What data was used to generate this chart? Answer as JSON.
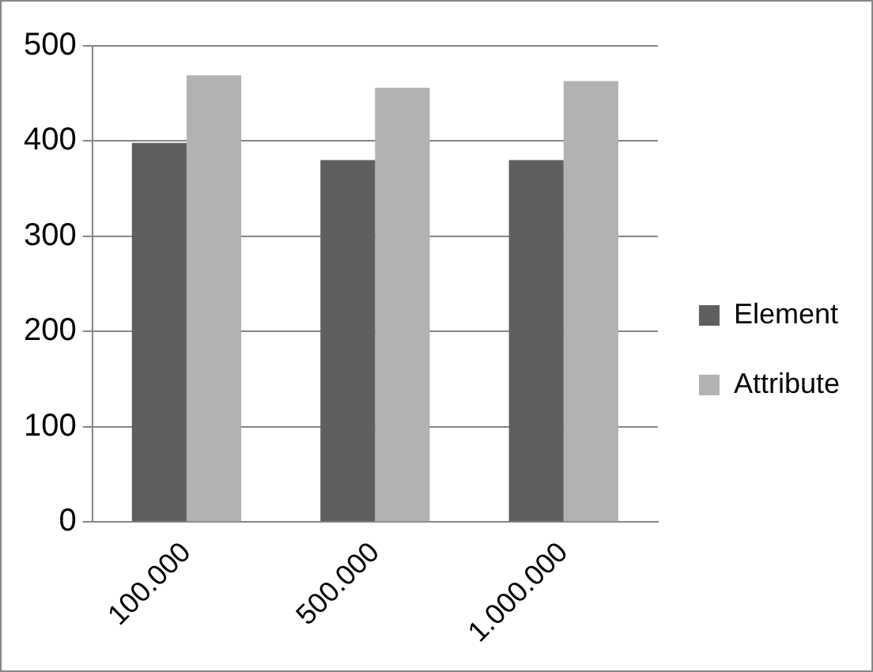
{
  "chart_data": {
    "type": "bar",
    "categories": [
      "100.000",
      "500.000",
      "1.000.000"
    ],
    "series": [
      {
        "name": "Element",
        "color": "#5f5f5f",
        "values": [
          398,
          380,
          380
        ]
      },
      {
        "name": "Attribute",
        "color": "#b2b2b2",
        "values": [
          469,
          456,
          463
        ]
      }
    ],
    "ylim": [
      0,
      500
    ],
    "yticks": [
      0,
      100,
      200,
      300,
      400,
      500
    ],
    "grid": "y",
    "legend": "right"
  }
}
